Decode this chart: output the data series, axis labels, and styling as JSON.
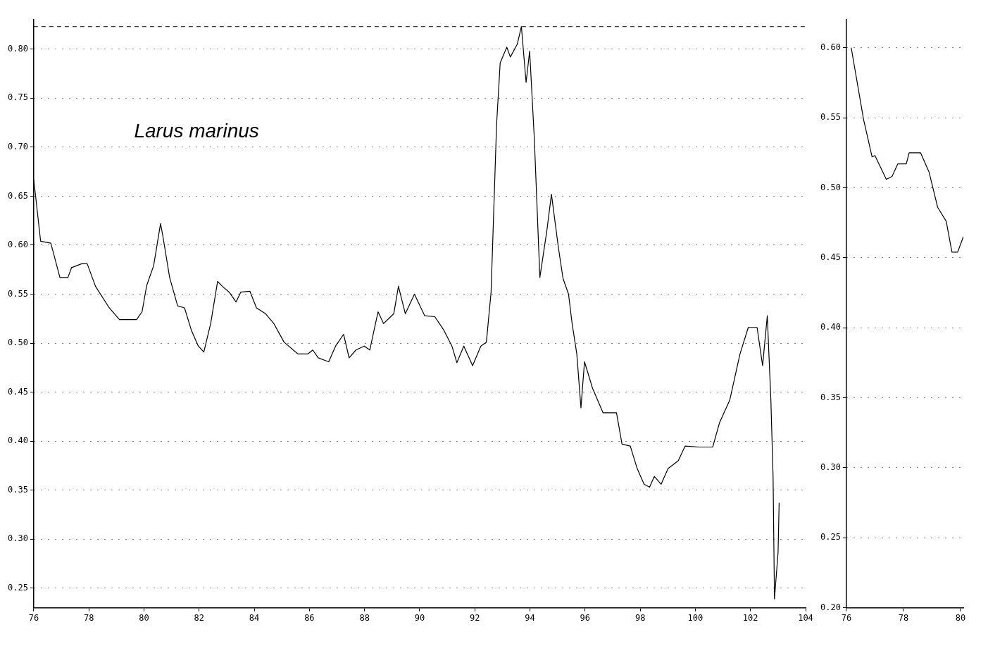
{
  "chart_data": [
    {
      "type": "line",
      "annotations": [
        "Larus marinus"
      ],
      "grid": "y",
      "marker": "none",
      "xlim": [
        76,
        104
      ],
      "xticks": [
        76,
        78,
        80,
        82,
        84,
        86,
        88,
        90,
        92,
        94,
        96,
        98,
        100,
        102,
        104
      ],
      "ylim": [
        0.23,
        0.83
      ],
      "yticks": [
        0.25,
        {
          "value": 0.3,
          "label": "0.30"
        },
        0.35,
        {
          "value": 0.4,
          "label": "0.40"
        },
        0.45,
        {
          "value": 0.5,
          "label": "0.50"
        },
        0.55,
        {
          "value": 0.6,
          "label": "0.60"
        },
        0.65,
        {
          "value": 0.7,
          "label": "0.70"
        },
        0.75,
        {
          "value": 0.8,
          "label": "0.80"
        }
      ],
      "ref_lines": [
        {
          "axis": "y",
          "value": 0.823,
          "line_style": "dashed"
        }
      ],
      "series": [
        {
          "color": "#000000",
          "x": [
            76.0,
            76.12,
            76.25,
            76.62,
            76.95,
            77.24,
            77.37,
            77.74,
            77.94,
            78.24,
            78.74,
            79.11,
            79.73,
            79.93,
            80.1,
            80.35,
            80.6,
            80.68,
            80.93,
            81.22,
            81.47,
            81.72,
            81.97,
            82.17,
            82.42,
            82.67,
            82.84,
            83.09,
            83.34,
            83.51,
            83.84,
            84.08,
            84.41,
            84.71,
            85.08,
            85.58,
            85.95,
            86.12,
            86.32,
            86.7,
            86.95,
            87.24,
            87.44,
            87.69,
            87.99,
            88.19,
            88.49,
            88.69,
            89.06,
            89.23,
            89.48,
            89.81,
            90.18,
            90.55,
            90.88,
            91.17,
            91.35,
            91.6,
            91.92,
            92.22,
            92.42,
            92.59,
            92.79,
            92.92,
            93.16,
            93.29,
            93.54,
            93.69,
            93.86,
            93.99,
            94.16,
            94.36,
            94.61,
            94.78,
            95.03,
            95.2,
            95.4,
            95.53,
            95.7,
            95.85,
            95.98,
            96.27,
            96.65,
            97.14,
            97.34,
            97.64,
            97.89,
            98.14,
            98.34,
            98.51,
            98.76,
            99.01,
            99.38,
            99.63,
            100.13,
            100.63,
            100.88,
            101.25,
            101.62,
            101.92,
            102.24,
            102.44,
            102.61,
            102.74,
            102.82,
            102.87,
            103.0,
            103.04
          ],
          "values": [
            0.667,
            0.637,
            0.604,
            0.602,
            0.567,
            0.567,
            0.577,
            0.581,
            0.581,
            0.558,
            0.536,
            0.524,
            0.524,
            0.532,
            0.559,
            0.579,
            0.622,
            0.61,
            0.567,
            0.538,
            0.536,
            0.513,
            0.497,
            0.491,
            0.52,
            0.563,
            0.558,
            0.552,
            0.542,
            0.552,
            0.553,
            0.536,
            0.53,
            0.52,
            0.501,
            0.489,
            0.489,
            0.493,
            0.485,
            0.481,
            0.497,
            0.509,
            0.485,
            0.493,
            0.497,
            0.493,
            0.532,
            0.52,
            0.53,
            0.558,
            0.53,
            0.55,
            0.528,
            0.527,
            0.513,
            0.497,
            0.48,
            0.497,
            0.477,
            0.497,
            0.501,
            0.552,
            0.723,
            0.786,
            0.802,
            0.792,
            0.805,
            0.823,
            0.766,
            0.798,
            0.708,
            0.567,
            0.614,
            0.652,
            0.598,
            0.566,
            0.55,
            0.52,
            0.489,
            0.434,
            0.481,
            0.454,
            0.429,
            0.429,
            0.397,
            0.395,
            0.372,
            0.356,
            0.353,
            0.364,
            0.356,
            0.372,
            0.38,
            0.395,
            0.394,
            0.394,
            0.419,
            0.442,
            0.489,
            0.516,
            0.516,
            0.477,
            0.528,
            0.442,
            0.364,
            0.239,
            0.286,
            0.337
          ]
        }
      ]
    },
    {
      "type": "line",
      "grid": "y",
      "marker": "none",
      "xlim": [
        76,
        80.1
      ],
      "xticks": [
        76,
        78,
        80
      ],
      "ylim": [
        0.2,
        0.62
      ],
      "yticks": [
        {
          "value": 0.2,
          "label": "0.20"
        },
        0.25,
        {
          "value": 0.3,
          "label": "0.30"
        },
        0.35,
        {
          "value": 0.4,
          "label": "0.40"
        },
        0.45,
        {
          "value": 0.5,
          "label": "0.50"
        },
        0.55,
        {
          "value": 0.6,
          "label": "0.60"
        }
      ],
      "series": [
        {
          "color": "#000000",
          "x": [
            76.17,
            76.6,
            76.9,
            77.0,
            77.4,
            77.6,
            77.8,
            78.1,
            78.2,
            78.6,
            78.9,
            79.2,
            79.5,
            79.7,
            79.9,
            80.1
          ],
          "values": [
            0.6,
            0.549,
            0.522,
            0.523,
            0.506,
            0.508,
            0.517,
            0.517,
            0.525,
            0.525,
            0.511,
            0.486,
            0.476,
            0.454,
            0.454,
            0.465
          ]
        }
      ]
    }
  ]
}
